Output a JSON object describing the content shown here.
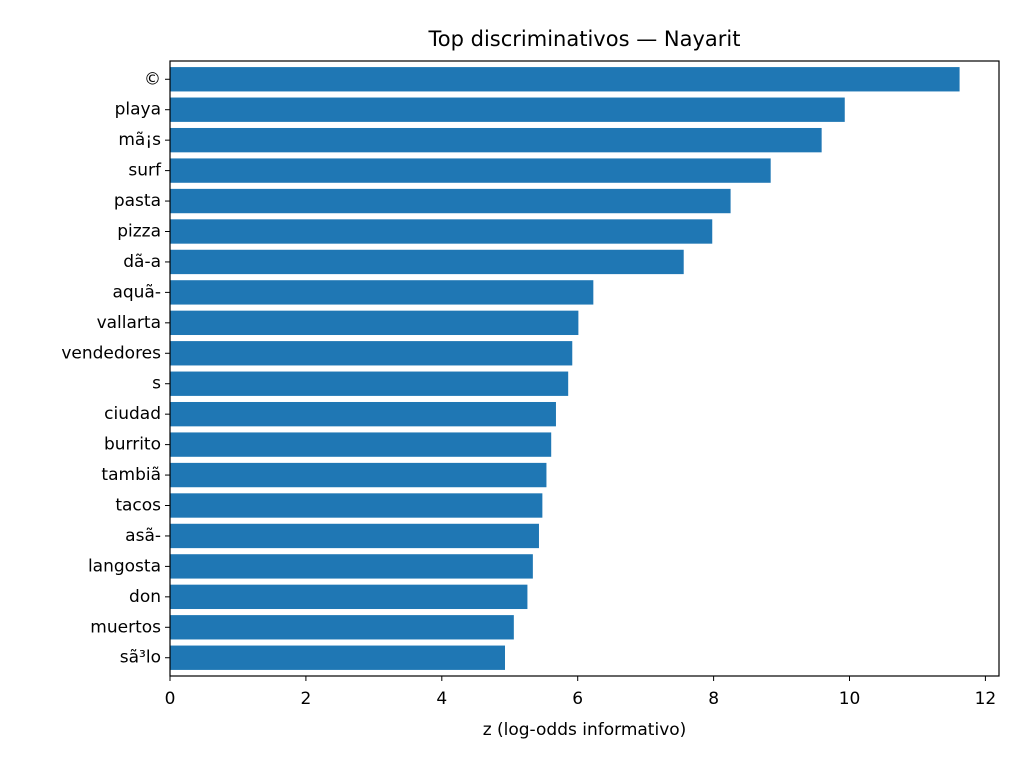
{
  "chart_data": {
    "type": "bar",
    "orientation": "horizontal",
    "title": "Top discriminativos — Nayarit",
    "xlabel": "z (log-odds informativo)",
    "ylabel": "",
    "xlim": [
      0,
      12.2
    ],
    "xticks": [
      0,
      2,
      4,
      6,
      8,
      10,
      12
    ],
    "grid": false,
    "bar_color": "#1f77b4",
    "categories": [
      "©",
      "playa",
      "mã¡s",
      "surf",
      "pasta",
      "pizza",
      "dã-a",
      "aquã-",
      "vallarta",
      "vendedores",
      "s",
      "ciudad",
      "burrito",
      "tambiã",
      "tacos",
      "asã-",
      "langosta",
      "don",
      "muertos",
      "sã³lo"
    ],
    "values": [
      11.62,
      9.93,
      9.59,
      8.84,
      8.25,
      7.98,
      7.56,
      6.23,
      6.01,
      5.92,
      5.86,
      5.68,
      5.61,
      5.54,
      5.48,
      5.43,
      5.34,
      5.26,
      5.06,
      4.93
    ]
  }
}
